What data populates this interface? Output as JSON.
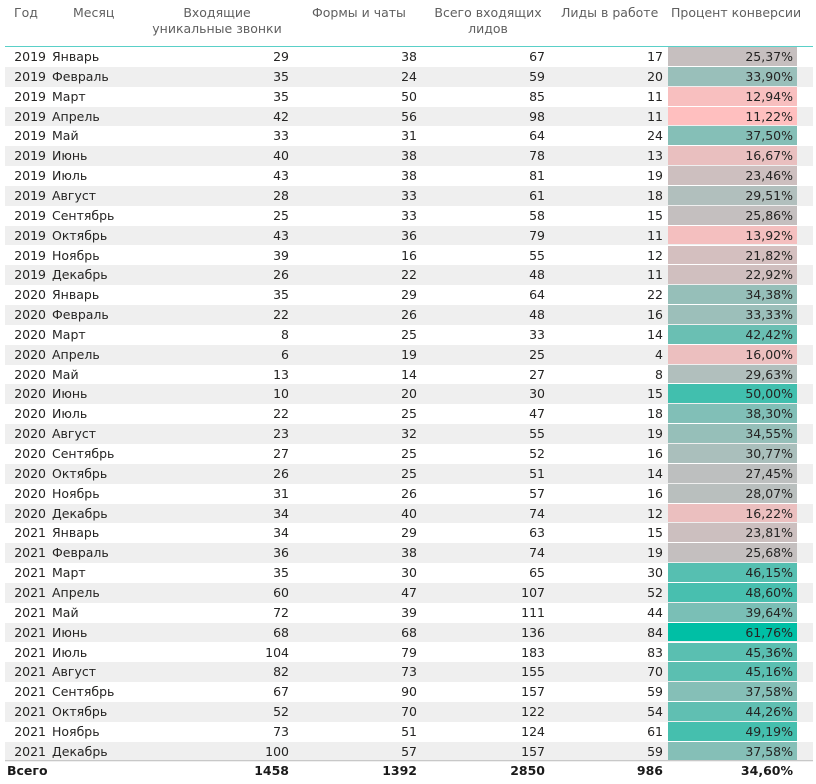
{
  "table": {
    "headers": [
      "Год",
      "Месяц",
      "Входящие уникальные звонки",
      "Формы и чаты",
      "Всего входящих лидов",
      "Лиды в работе",
      "Процент конверсии"
    ],
    "colors": {
      "low": "#ffbfbf",
      "mid": "#bfbfbf",
      "high": "#00bfa5"
    },
    "rows": [
      [
        "2019",
        "Январь",
        "29",
        "38",
        "67",
        "17",
        "25,37%"
      ],
      [
        "2019",
        "Февраль",
        "35",
        "24",
        "59",
        "20",
        "33,90%"
      ],
      [
        "2019",
        "Март",
        "35",
        "50",
        "85",
        "11",
        "12,94%"
      ],
      [
        "2019",
        "Апрель",
        "42",
        "56",
        "98",
        "11",
        "11,22%"
      ],
      [
        "2019",
        "Май",
        "33",
        "31",
        "64",
        "24",
        "37,50%"
      ],
      [
        "2019",
        "Июнь",
        "40",
        "38",
        "78",
        "13",
        "16,67%"
      ],
      [
        "2019",
        "Июль",
        "43",
        "38",
        "81",
        "19",
        "23,46%"
      ],
      [
        "2019",
        "Август",
        "28",
        "33",
        "61",
        "18",
        "29,51%"
      ],
      [
        "2019",
        "Сентябрь",
        "25",
        "33",
        "58",
        "15",
        "25,86%"
      ],
      [
        "2019",
        "Октябрь",
        "43",
        "36",
        "79",
        "11",
        "13,92%"
      ],
      [
        "2019",
        "Ноябрь",
        "39",
        "16",
        "55",
        "12",
        "21,82%"
      ],
      [
        "2019",
        "Декабрь",
        "26",
        "22",
        "48",
        "11",
        "22,92%"
      ],
      [
        "2020",
        "Январь",
        "35",
        "29",
        "64",
        "22",
        "34,38%"
      ],
      [
        "2020",
        "Февраль",
        "22",
        "26",
        "48",
        "16",
        "33,33%"
      ],
      [
        "2020",
        "Март",
        "8",
        "25",
        "33",
        "14",
        "42,42%"
      ],
      [
        "2020",
        "Апрель",
        "6",
        "19",
        "25",
        "4",
        "16,00%"
      ],
      [
        "2020",
        "Май",
        "13",
        "14",
        "27",
        "8",
        "29,63%"
      ],
      [
        "2020",
        "Июнь",
        "10",
        "20",
        "30",
        "15",
        "50,00%"
      ],
      [
        "2020",
        "Июль",
        "22",
        "25",
        "47",
        "18",
        "38,30%"
      ],
      [
        "2020",
        "Август",
        "23",
        "32",
        "55",
        "19",
        "34,55%"
      ],
      [
        "2020",
        "Сентябрь",
        "27",
        "25",
        "52",
        "16",
        "30,77%"
      ],
      [
        "2020",
        "Октябрь",
        "26",
        "25",
        "51",
        "14",
        "27,45%"
      ],
      [
        "2020",
        "Ноябрь",
        "31",
        "26",
        "57",
        "16",
        "28,07%"
      ],
      [
        "2020",
        "Декабрь",
        "34",
        "40",
        "74",
        "12",
        "16,22%"
      ],
      [
        "2021",
        "Январь",
        "34",
        "29",
        "63",
        "15",
        "23,81%"
      ],
      [
        "2021",
        "Февраль",
        "36",
        "38",
        "74",
        "19",
        "25,68%"
      ],
      [
        "2021",
        "Март",
        "35",
        "30",
        "65",
        "30",
        "46,15%"
      ],
      [
        "2021",
        "Апрель",
        "60",
        "47",
        "107",
        "52",
        "48,60%"
      ],
      [
        "2021",
        "Май",
        "72",
        "39",
        "111",
        "44",
        "39,64%"
      ],
      [
        "2021",
        "Июнь",
        "68",
        "68",
        "136",
        "84",
        "61,76%"
      ],
      [
        "2021",
        "Июль",
        "104",
        "79",
        "183",
        "83",
        "45,36%"
      ],
      [
        "2021",
        "Август",
        "82",
        "73",
        "155",
        "70",
        "45,16%"
      ],
      [
        "2021",
        "Сентябрь",
        "67",
        "90",
        "157",
        "59",
        "37,58%"
      ],
      [
        "2021",
        "Октябрь",
        "52",
        "70",
        "122",
        "54",
        "44,26%"
      ],
      [
        "2021",
        "Ноябрь",
        "73",
        "51",
        "124",
        "61",
        "49,19%"
      ],
      [
        "2021",
        "Декабрь",
        "100",
        "57",
        "157",
        "59",
        "37,58%"
      ]
    ],
    "total": [
      "Всего",
      "1458",
      "1392",
      "2850",
      "986",
      "34,60%"
    ]
  },
  "chart_data": {
    "type": "table",
    "columns": [
      "Год",
      "Месяц",
      "Входящие уникальные звонки",
      "Формы и чаты",
      "Всего входящих лидов",
      "Лиды в работе",
      "Процент конверсии"
    ],
    "year": [
      2019,
      2019,
      2019,
      2019,
      2019,
      2019,
      2019,
      2019,
      2019,
      2019,
      2019,
      2019,
      2020,
      2020,
      2020,
      2020,
      2020,
      2020,
      2020,
      2020,
      2020,
      2020,
      2020,
      2020,
      2021,
      2021,
      2021,
      2021,
      2021,
      2021,
      2021,
      2021,
      2021,
      2021,
      2021,
      2021
    ],
    "month": [
      "Январь",
      "Февраль",
      "Март",
      "Апрель",
      "Май",
      "Июнь",
      "Июль",
      "Август",
      "Сентябрь",
      "Октябрь",
      "Ноябрь",
      "Декабрь",
      "Январь",
      "Февраль",
      "Март",
      "Апрель",
      "Май",
      "Июнь",
      "Июль",
      "Август",
      "Сентябрь",
      "Октябрь",
      "Ноябрь",
      "Декабрь",
      "Январь",
      "Февраль",
      "Март",
      "Апрель",
      "Май",
      "Июнь",
      "Июль",
      "Август",
      "Сентябрь",
      "Октябрь",
      "Ноябрь",
      "Декабрь"
    ],
    "calls": [
      29,
      35,
      35,
      42,
      33,
      40,
      43,
      28,
      25,
      43,
      39,
      26,
      35,
      22,
      8,
      6,
      13,
      10,
      22,
      23,
      27,
      26,
      31,
      34,
      34,
      36,
      35,
      60,
      72,
      68,
      104,
      82,
      67,
      52,
      73,
      100
    ],
    "forms": [
      38,
      24,
      50,
      56,
      31,
      38,
      38,
      33,
      33,
      36,
      16,
      22,
      29,
      26,
      25,
      19,
      14,
      20,
      25,
      32,
      25,
      25,
      26,
      40,
      29,
      38,
      30,
      47,
      39,
      68,
      79,
      73,
      90,
      70,
      51,
      57
    ],
    "total_leads": [
      67,
      59,
      85,
      98,
      64,
      78,
      81,
      61,
      58,
      79,
      55,
      48,
      64,
      48,
      33,
      25,
      27,
      30,
      47,
      55,
      52,
      51,
      57,
      74,
      63,
      74,
      65,
      107,
      111,
      136,
      183,
      155,
      157,
      122,
      124,
      157
    ],
    "leads_in_work": [
      17,
      20,
      11,
      11,
      24,
      13,
      19,
      18,
      15,
      11,
      12,
      11,
      22,
      16,
      14,
      4,
      8,
      15,
      18,
      19,
      16,
      14,
      16,
      12,
      15,
      19,
      30,
      52,
      44,
      84,
      83,
      70,
      59,
      54,
      61,
      59
    ],
    "conversion_pct": [
      25.37,
      33.9,
      12.94,
      11.22,
      37.5,
      16.67,
      23.46,
      29.51,
      25.86,
      13.92,
      21.82,
      22.92,
      34.38,
      33.33,
      42.42,
      16.0,
      29.63,
      50.0,
      38.3,
      34.55,
      30.77,
      27.45,
      28.07,
      16.22,
      23.81,
      25.68,
      46.15,
      48.6,
      39.64,
      61.76,
      45.36,
      45.16,
      37.58,
      44.26,
      49.19,
      37.58
    ],
    "totals": {
      "calls": 1458,
      "forms": 1392,
      "total_leads": 2850,
      "leads_in_work": 986,
      "conversion_pct": 34.6
    }
  }
}
